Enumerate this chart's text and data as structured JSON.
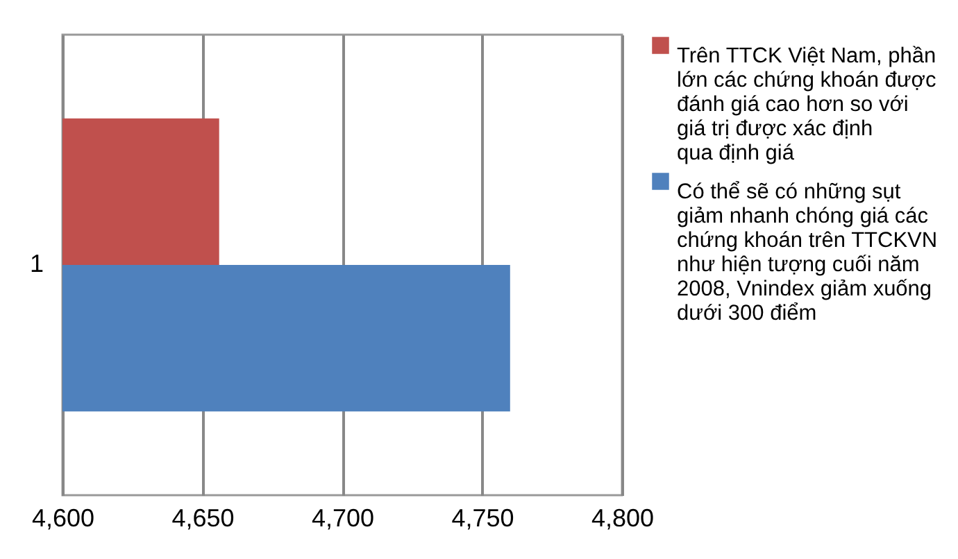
{
  "chart_data": {
    "type": "bar",
    "orientation": "horizontal",
    "categories": [
      "1"
    ],
    "series": [
      {
        "name": "Trên TTCK Việt Nam, phần lớn các chứng khoán được đánh giá cao hơn so với giá trị được xác định qua định giá",
        "color": "#c0504d",
        "values": [
          4656
        ]
      },
      {
        "name": "Có thể sẽ có những sụt giảm nhanh chóng giá các chứng khoán trên TTCKVN như hiện tượng cuối năm 2008, Vnindex giảm xuống dưới 300 điểm",
        "color": "#4f81bd",
        "values": [
          4760
        ]
      }
    ],
    "xlim": [
      4600,
      4800
    ],
    "xticks": [
      {
        "value": 4600,
        "label": "4,600"
      },
      {
        "value": 4650,
        "label": "4,650"
      },
      {
        "value": 4700,
        "label": "4,700"
      },
      {
        "value": 4750,
        "label": "4,750"
      },
      {
        "value": 4800,
        "label": "4,800"
      }
    ],
    "grid": "x",
    "legend": "right"
  }
}
